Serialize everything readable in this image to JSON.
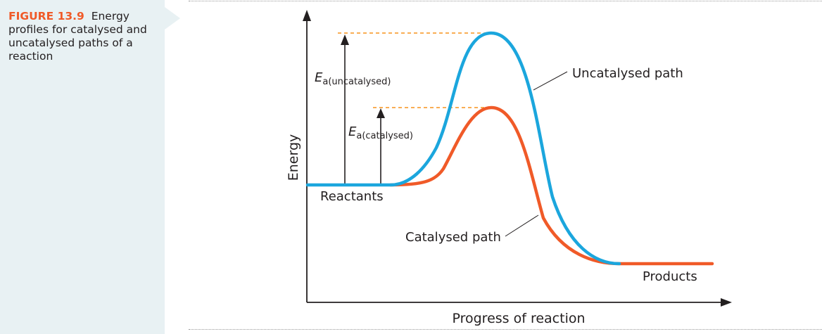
{
  "caption": {
    "figure_number": "FIGURE 13.9",
    "text": "Energy profiles for catalysed and uncatalysed paths of a reaction"
  },
  "labels": {
    "y_axis": "Energy",
    "x_axis": "Progress of reaction",
    "reactants": "Reactants",
    "products": "Products",
    "uncatalysed_path": "Uncatalysed path",
    "catalysed_path": "Catalysed path",
    "ea_symbol": "E",
    "ea_uncatalysed_subscript": "a(uncatalysed)",
    "ea_catalysed_subscript": "a(catalysed)"
  },
  "colors": {
    "uncatalysed": "#1ba6dd",
    "catalysed": "#f05a28",
    "guide_dashes": "#f7941d",
    "axis": "#231f20",
    "caption_accent": "#f05a28",
    "caption_panel": "#e8f1f3"
  }
}
